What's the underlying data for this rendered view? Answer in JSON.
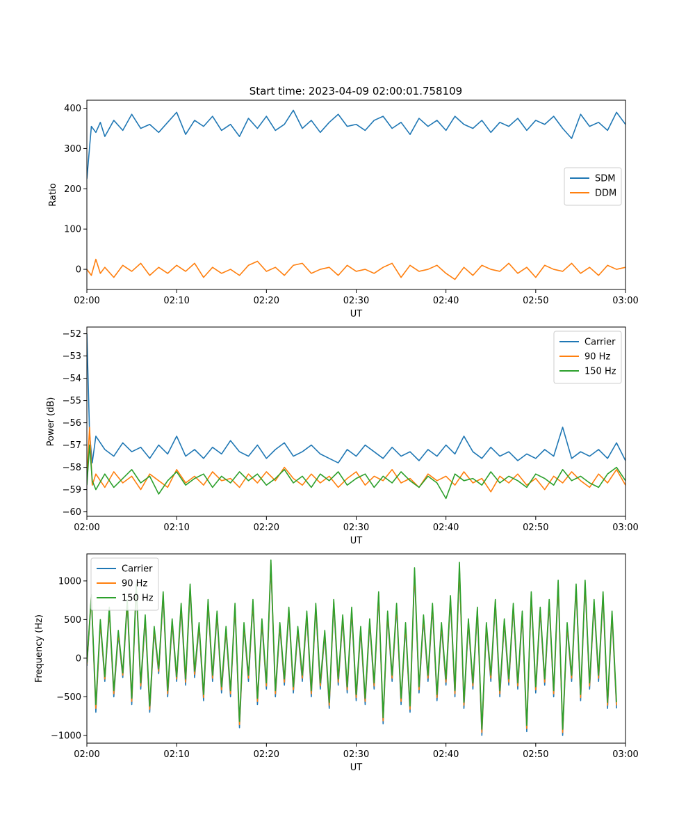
{
  "figure": {
    "title": "Start time: 2023-04-09 02:00:01.758109"
  },
  "chart_data": [
    {
      "type": "line",
      "xlabel": "UT",
      "ylabel": "Ratio",
      "xlim": [
        "02:00",
        "03:00"
      ],
      "ylim": [
        -50,
        420
      ],
      "xticks": [
        "02:00",
        "02:10",
        "02:20",
        "02:30",
        "02:40",
        "02:50",
        "03:00"
      ],
      "yticks": [
        0,
        100,
        200,
        300,
        400
      ],
      "legend": "center-right",
      "grid": false,
      "x_minutes": [
        0,
        0.5,
        1,
        1.5,
        2,
        3,
        4,
        5,
        6,
        7,
        8,
        9,
        10,
        11,
        12,
        13,
        14,
        15,
        16,
        17,
        18,
        19,
        20,
        21,
        22,
        23,
        24,
        25,
        26,
        27,
        28,
        29,
        30,
        31,
        32,
        33,
        34,
        35,
        36,
        37,
        38,
        39,
        40,
        41,
        42,
        43,
        44,
        45,
        46,
        47,
        48,
        49,
        50,
        51,
        52,
        53,
        54,
        55,
        56,
        57,
        58,
        59,
        60
      ],
      "series": [
        {
          "name": "SDM",
          "color": "#1f77b4",
          "values": [
            225,
            355,
            340,
            365,
            330,
            370,
            345,
            385,
            350,
            360,
            340,
            365,
            390,
            335,
            370,
            355,
            380,
            345,
            360,
            330,
            375,
            350,
            380,
            345,
            360,
            395,
            350,
            370,
            340,
            365,
            385,
            355,
            360,
            345,
            370,
            380,
            350,
            365,
            335,
            375,
            355,
            370,
            345,
            380,
            360,
            350,
            370,
            340,
            365,
            355,
            375,
            345,
            370,
            360,
            380,
            350,
            325,
            385,
            355,
            365,
            345,
            390,
            360
          ]
        },
        {
          "name": "DDM",
          "color": "#ff7f0e",
          "values": [
            0,
            -15,
            25,
            -10,
            5,
            -20,
            10,
            -5,
            15,
            -15,
            5,
            -10,
            10,
            -5,
            15,
            -20,
            5,
            -10,
            0,
            -15,
            10,
            20,
            -5,
            5,
            -15,
            10,
            15,
            -10,
            0,
            5,
            -15,
            10,
            -5,
            0,
            -10,
            5,
            15,
            -20,
            10,
            -5,
            0,
            10,
            -10,
            -25,
            5,
            -15,
            10,
            0,
            -5,
            15,
            -10,
            5,
            -20,
            10,
            0,
            -5,
            15,
            -10,
            5,
            -15,
            10,
            0,
            5
          ]
        }
      ]
    },
    {
      "type": "line",
      "xlabel": "UT",
      "ylabel": "Power (dB)",
      "xlim": [
        "02:00",
        "03:00"
      ],
      "ylim": [
        -60.2,
        -51.7
      ],
      "xticks": [
        "02:00",
        "02:10",
        "02:20",
        "02:30",
        "02:40",
        "02:50",
        "03:00"
      ],
      "yticks": [
        -60,
        -59,
        -58,
        -57,
        -56,
        -55,
        -54,
        -53,
        -52
      ],
      "legend": "top-right",
      "grid": false,
      "x_minutes": [
        0,
        0.3,
        0.6,
        1,
        2,
        3,
        4,
        5,
        6,
        7,
        8,
        9,
        10,
        11,
        12,
        13,
        14,
        15,
        16,
        17,
        18,
        19,
        20,
        21,
        22,
        23,
        24,
        25,
        26,
        27,
        28,
        29,
        30,
        31,
        32,
        33,
        34,
        35,
        36,
        37,
        38,
        39,
        40,
        41,
        42,
        43,
        44,
        45,
        46,
        47,
        48,
        49,
        50,
        51,
        52,
        53,
        54,
        55,
        56,
        57,
        58,
        59,
        60
      ],
      "series": [
        {
          "name": "Carrier",
          "color": "#1f77b4",
          "values": [
            -52,
            -56.5,
            -57.8,
            -56.6,
            -57.2,
            -57.5,
            -56.9,
            -57.3,
            -57.1,
            -57.6,
            -57.0,
            -57.4,
            -56.6,
            -57.5,
            -57.2,
            -57.6,
            -57.1,
            -57.4,
            -56.8,
            -57.3,
            -57.5,
            -57.0,
            -57.6,
            -57.2,
            -56.9,
            -57.5,
            -57.3,
            -57.0,
            -57.4,
            -57.6,
            -57.8,
            -57.2,
            -57.5,
            -57.0,
            -57.3,
            -57.6,
            -57.1,
            -57.5,
            -57.3,
            -57.7,
            -57.2,
            -57.5,
            -57.0,
            -57.4,
            -56.6,
            -57.3,
            -57.6,
            -57.1,
            -57.5,
            -57.3,
            -57.7,
            -57.4,
            -57.6,
            -57.2,
            -57.5,
            -56.2,
            -57.6,
            -57.3,
            -57.5,
            -57.2,
            -57.6,
            -56.9,
            -57.7
          ]
        },
        {
          "name": "90 Hz",
          "color": "#ff7f0e",
          "values": [
            -58.5,
            -56.2,
            -58.8,
            -58.3,
            -58.9,
            -58.2,
            -58.7,
            -58.4,
            -59.0,
            -58.3,
            -58.6,
            -58.9,
            -58.1,
            -58.7,
            -58.4,
            -58.8,
            -58.2,
            -58.6,
            -58.5,
            -58.9,
            -58.3,
            -58.7,
            -58.2,
            -58.6,
            -58.0,
            -58.5,
            -58.8,
            -58.3,
            -58.7,
            -58.4,
            -58.9,
            -58.5,
            -58.2,
            -58.8,
            -58.4,
            -58.6,
            -58.1,
            -58.7,
            -58.5,
            -58.9,
            -58.3,
            -58.6,
            -58.4,
            -58.8,
            -58.2,
            -58.7,
            -58.5,
            -59.1,
            -58.4,
            -58.7,
            -58.3,
            -58.8,
            -58.5,
            -59.0,
            -58.4,
            -58.7,
            -58.2,
            -58.6,
            -58.9,
            -58.3,
            -58.7,
            -58.1,
            -58.8
          ]
        },
        {
          "name": "150 Hz",
          "color": "#2ca02c",
          "values": [
            -58.8,
            -57.0,
            -58.6,
            -59.0,
            -58.3,
            -58.9,
            -58.5,
            -58.1,
            -58.7,
            -58.4,
            -59.2,
            -58.6,
            -58.2,
            -58.8,
            -58.5,
            -58.3,
            -58.9,
            -58.4,
            -58.7,
            -58.2,
            -58.6,
            -58.3,
            -58.8,
            -58.5,
            -58.1,
            -58.7,
            -58.4,
            -58.9,
            -58.3,
            -58.6,
            -58.2,
            -58.8,
            -58.5,
            -58.3,
            -58.9,
            -58.4,
            -58.7,
            -58.2,
            -58.6,
            -58.9,
            -58.4,
            -58.7,
            -59.4,
            -58.3,
            -58.6,
            -58.5,
            -58.8,
            -58.2,
            -58.7,
            -58.4,
            -58.6,
            -58.9,
            -58.3,
            -58.5,
            -58.8,
            -58.1,
            -58.6,
            -58.4,
            -58.7,
            -58.9,
            -58.3,
            -58.0,
            -58.6
          ]
        }
      ]
    },
    {
      "type": "line",
      "xlabel": "UT",
      "ylabel": "Frequency (Hz)",
      "xlim": [
        "02:00",
        "03:00"
      ],
      "ylim": [
        -1100,
        1350
      ],
      "xticks": [
        "02:00",
        "02:10",
        "02:20",
        "02:30",
        "02:40",
        "02:50",
        "03:00"
      ],
      "yticks": [
        -1000,
        -500,
        0,
        500,
        1000
      ],
      "legend": "top-left",
      "grid": false,
      "x_minutes": [
        0,
        0.5,
        1,
        1.5,
        2,
        2.5,
        3,
        3.5,
        4,
        4.5,
        5,
        5.5,
        6,
        6.5,
        7,
        7.5,
        8,
        8.5,
        9,
        9.5,
        10,
        10.5,
        11,
        11.5,
        12,
        12.5,
        13,
        13.5,
        14,
        14.5,
        15,
        15.5,
        16,
        16.5,
        17,
        17.5,
        18,
        18.5,
        19,
        19.5,
        20,
        20.5,
        21,
        21.5,
        22,
        22.5,
        23,
        23.5,
        24,
        24.5,
        25,
        25.5,
        26,
        26.5,
        27,
        27.5,
        28,
        28.5,
        29,
        29.5,
        30,
        30.5,
        31,
        31.5,
        32,
        32.5,
        33,
        33.5,
        34,
        34.5,
        35,
        35.5,
        36,
        36.5,
        37,
        37.5,
        38,
        38.5,
        39,
        39.5,
        40,
        40.5,
        41,
        41.5,
        42,
        42.5,
        43,
        43.5,
        44,
        44.5,
        45,
        45.5,
        46,
        46.5,
        47,
        47.5,
        48,
        48.5,
        49,
        49.5,
        50,
        50.5,
        51,
        51.5,
        52,
        52.5,
        53,
        53.5,
        54,
        54.5,
        55,
        55.5,
        56,
        56.5,
        57,
        57.5,
        58,
        58.5,
        59,
        59.5,
        60
      ],
      "series": [
        {
          "name": "Carrier",
          "color": "#1f77b4",
          "values": [
            -100,
            780,
            -700,
            450,
            -300,
            600,
            -500,
            300,
            -250,
            700,
            -600,
            900,
            -400,
            500,
            -700,
            350,
            -200,
            800,
            -500,
            450,
            -300,
            650,
            -350,
            900,
            -250,
            400,
            -550,
            700,
            -300,
            550,
            -450,
            350,
            -500,
            650,
            -900,
            400,
            -300,
            700,
            -600,
            450,
            -400,
            1200,
            -500,
            400,
            -350,
            600,
            -450,
            350,
            -300,
            550,
            -500,
            650,
            -400,
            300,
            -650,
            700,
            -350,
            500,
            -450,
            600,
            -550,
            350,
            -600,
            450,
            -400,
            800,
            -850,
            550,
            -300,
            650,
            -600,
            400,
            -700,
            1100,
            -450,
            500,
            -300,
            650,
            -550,
            400,
            -350,
            750,
            -500,
            1150,
            -650,
            450,
            -400,
            600,
            -1000,
            400,
            -300,
            700,
            -500,
            450,
            -350,
            650,
            -400,
            550,
            -950,
            800,
            -450,
            600,
            -350,
            700,
            -500,
            950,
            -1000,
            400,
            -300,
            900,
            -550,
            950,
            -400,
            700,
            -300,
            800,
            -650,
            550,
            -650
          ]
        },
        {
          "name": "90 Hz",
          "color": "#ff7f0e",
          "values": [
            -80,
            800,
            -650,
            470,
            -270,
            630,
            -460,
            330,
            -220,
            730,
            -560,
            930,
            -360,
            530,
            -660,
            380,
            -170,
            830,
            -460,
            480,
            -270,
            680,
            -310,
            930,
            -210,
            430,
            -510,
            730,
            -260,
            580,
            -410,
            380,
            -460,
            680,
            -860,
            430,
            -260,
            730,
            -560,
            480,
            -360,
            1230,
            -460,
            430,
            -310,
            630,
            -410,
            380,
            -260,
            580,
            -460,
            680,
            -360,
            330,
            -610,
            730,
            -310,
            530,
            -410,
            630,
            -510,
            380,
            -560,
            480,
            -360,
            830,
            -810,
            580,
            -260,
            680,
            -560,
            430,
            -660,
            1130,
            -410,
            530,
            -260,
            680,
            -510,
            430,
            -310,
            780,
            -460,
            1180,
            -610,
            480,
            -360,
            630,
            -960,
            430,
            -260,
            730,
            -460,
            480,
            -310,
            680,
            -360,
            580,
            -910,
            830,
            -410,
            630,
            -310,
            730,
            -460,
            980,
            -960,
            430,
            -260,
            930,
            -510,
            980,
            -360,
            730,
            -260,
            830,
            -610,
            580,
            -610
          ]
        },
        {
          "name": "150 Hz",
          "color": "#2ca02c",
          "values": [
            -60,
            820,
            -600,
            500,
            -240,
            660,
            -420,
            360,
            -190,
            760,
            -520,
            960,
            -320,
            560,
            -620,
            410,
            -140,
            860,
            -420,
            510,
            -240,
            710,
            -270,
            960,
            -170,
            460,
            -470,
            760,
            -220,
            610,
            -370,
            410,
            -420,
            710,
            -820,
            460,
            -220,
            760,
            -520,
            510,
            -320,
            1270,
            -420,
            460,
            -270,
            660,
            -370,
            410,
            -220,
            610,
            -420,
            710,
            -320,
            360,
            -570,
            760,
            -270,
            560,
            -370,
            660,
            -470,
            410,
            -520,
            510,
            -320,
            860,
            -770,
            610,
            -220,
            710,
            -520,
            460,
            -620,
            1170,
            -370,
            560,
            -220,
            710,
            -470,
            460,
            -270,
            810,
            -420,
            1240,
            -570,
            510,
            -320,
            660,
            -920,
            460,
            -220,
            760,
            -420,
            510,
            -270,
            710,
            -320,
            610,
            -870,
            860,
            -370,
            660,
            -270,
            760,
            -420,
            1010,
            -920,
            460,
            -220,
            960,
            -470,
            1010,
            -320,
            760,
            -220,
            860,
            -570,
            610,
            -570
          ]
        }
      ]
    }
  ]
}
